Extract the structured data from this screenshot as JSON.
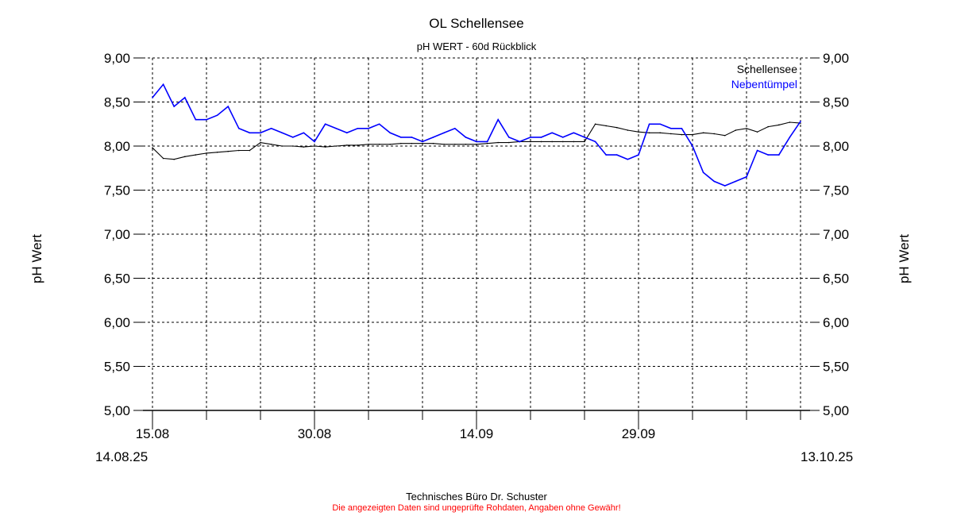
{
  "chart_data": {
    "type": "line",
    "title": "OL Schellensee",
    "subtitle": "pH WERT - 60d Rückblick",
    "ylabel": "pH Wert",
    "xlabel": "",
    "ylim": [
      5.0,
      9.0
    ],
    "y_ticks": [
      "5,00",
      "5,50",
      "6,00",
      "6,50",
      "7,00",
      "7,50",
      "8,00",
      "8,50",
      "9,00"
    ],
    "y_tick_values": [
      5.0,
      5.5,
      6.0,
      6.5,
      7.0,
      7.5,
      8.0,
      8.5,
      9.0
    ],
    "x_range": [
      "2025-08-14",
      "2025-10-14"
    ],
    "x_ticks": [
      {
        "date": "2025-08-15",
        "label": "15.08"
      },
      {
        "date": "2025-08-20",
        "label": ""
      },
      {
        "date": "2025-08-25",
        "label": ""
      },
      {
        "date": "2025-08-30",
        "label": "30.08"
      },
      {
        "date": "2025-09-04",
        "label": ""
      },
      {
        "date": "2025-09-09",
        "label": ""
      },
      {
        "date": "2025-09-14",
        "label": "14.09"
      },
      {
        "date": "2025-09-19",
        "label": ""
      },
      {
        "date": "2025-09-24",
        "label": ""
      },
      {
        "date": "2025-09-29",
        "label": "29.09"
      },
      {
        "date": "2025-10-04",
        "label": ""
      },
      {
        "date": "2025-10-09",
        "label": ""
      },
      {
        "date": "2025-10-14",
        "label": ""
      }
    ],
    "start_label": "14.08.25",
    "end_label": "13.10.25",
    "grid": true,
    "legend_position": "top-right",
    "x": [
      "2025-08-15",
      "2025-08-16",
      "2025-08-17",
      "2025-08-18",
      "2025-08-19",
      "2025-08-20",
      "2025-08-21",
      "2025-08-22",
      "2025-08-23",
      "2025-08-24",
      "2025-08-25",
      "2025-08-26",
      "2025-08-27",
      "2025-08-28",
      "2025-08-29",
      "2025-08-30",
      "2025-08-31",
      "2025-09-01",
      "2025-09-02",
      "2025-09-03",
      "2025-09-04",
      "2025-09-05",
      "2025-09-06",
      "2025-09-07",
      "2025-09-08",
      "2025-09-09",
      "2025-09-10",
      "2025-09-11",
      "2025-09-12",
      "2025-09-13",
      "2025-09-14",
      "2025-09-15",
      "2025-09-16",
      "2025-09-17",
      "2025-09-18",
      "2025-09-19",
      "2025-09-20",
      "2025-09-21",
      "2025-09-22",
      "2025-09-23",
      "2025-09-24",
      "2025-09-25",
      "2025-09-26",
      "2025-09-27",
      "2025-09-28",
      "2025-09-29",
      "2025-09-30",
      "2025-10-01",
      "2025-10-02",
      "2025-10-03",
      "2025-10-04",
      "2025-10-05",
      "2025-10-06",
      "2025-10-07",
      "2025-10-08",
      "2025-10-09",
      "2025-10-10",
      "2025-10-11",
      "2025-10-12",
      "2025-10-13",
      "2025-10-14"
    ],
    "series": [
      {
        "name": "Schellensee",
        "color": "#000000",
        "values": [
          7.98,
          7.86,
          7.85,
          7.88,
          7.9,
          7.92,
          7.93,
          7.94,
          7.95,
          7.95,
          8.04,
          8.02,
          8.0,
          8.0,
          7.99,
          8.0,
          7.99,
          8.0,
          8.01,
          8.01,
          8.02,
          8.02,
          8.02,
          8.03,
          8.03,
          8.03,
          8.03,
          8.02,
          8.02,
          8.02,
          8.02,
          8.03,
          8.04,
          8.04,
          8.05,
          8.05,
          8.05,
          8.05,
          8.05,
          8.05,
          8.05,
          8.25,
          8.23,
          8.21,
          8.18,
          8.16,
          8.15,
          8.15,
          8.14,
          8.13,
          8.13,
          8.15,
          8.14,
          8.12,
          8.18,
          8.2,
          8.16,
          8.22,
          8.24,
          8.27,
          8.26
        ]
      },
      {
        "name": "Nebentümpel",
        "color": "#0000ff",
        "values": [
          8.55,
          8.7,
          8.45,
          8.55,
          8.3,
          8.3,
          8.35,
          8.45,
          8.2,
          8.15,
          8.15,
          8.2,
          8.15,
          8.1,
          8.15,
          8.05,
          8.25,
          8.2,
          8.15,
          8.2,
          8.2,
          8.25,
          8.15,
          8.1,
          8.1,
          8.05,
          8.1,
          8.15,
          8.2,
          8.1,
          8.05,
          8.05,
          8.3,
          8.1,
          8.05,
          8.1,
          8.1,
          8.15,
          8.1,
          8.15,
          8.1,
          8.05,
          7.9,
          7.9,
          7.85,
          7.9,
          8.25,
          8.25,
          8.2,
          8.2,
          8.0,
          7.7,
          7.6,
          7.55,
          7.6,
          7.65,
          7.95,
          7.9,
          7.9,
          8.1,
          8.28
        ]
      }
    ]
  },
  "footer": {
    "company": "Technisches Büro Dr. Schuster",
    "disclaimer": "Die angezeigten Daten sind ungeprüfte Rohdaten, Angaben ohne Gewähr!"
  }
}
